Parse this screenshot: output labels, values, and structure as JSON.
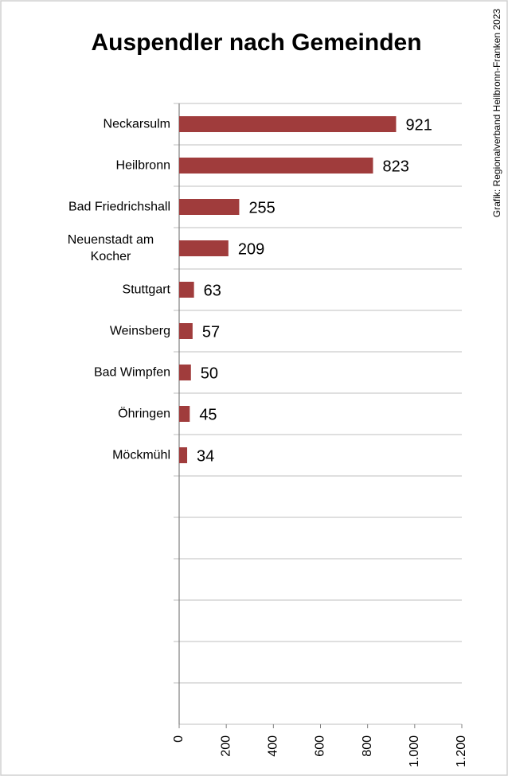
{
  "chart_data": {
    "type": "bar",
    "orientation": "horizontal",
    "title": "Auspendler nach Gemeinden",
    "source": "Grafik: Regionalverband Heilbronn-Franken 2023",
    "categories": [
      "Neckarsulm",
      "Heilbronn",
      "Bad Friedrichshall",
      "Neuenstadt am Kocher",
      "Stuttgart",
      "Weinsberg",
      "Bad Wimpfen",
      "Öhringen",
      "Möckmühl",
      null,
      null,
      null,
      null,
      null,
      null
    ],
    "values": [
      921,
      823,
      255,
      209,
      63,
      57,
      50,
      45,
      34,
      null,
      null,
      null,
      null,
      null,
      null
    ],
    "color": "#a03c3c",
    "xlim": [
      0,
      1200
    ],
    "xticks": [
      0,
      200,
      400,
      600,
      800,
      {
        "value": 1000,
        "label": "1.000"
      },
      {
        "value": 1200,
        "label": "1.200"
      }
    ]
  }
}
